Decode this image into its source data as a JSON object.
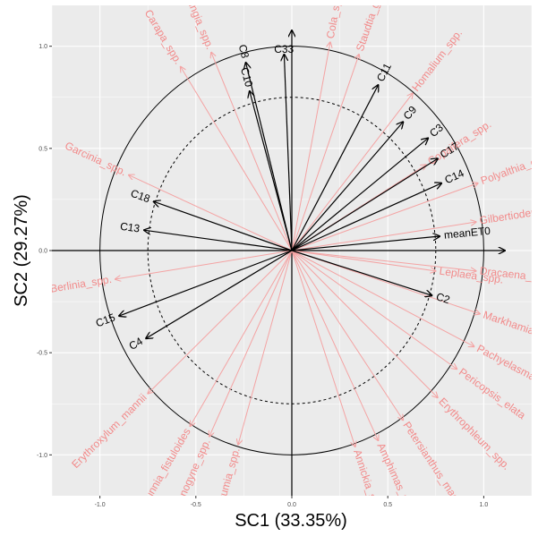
{
  "chart_data": {
    "type": "scatter",
    "subtype": "correlation-circle biplot",
    "title": "",
    "xlabel": "SC1 (33.35%)",
    "ylabel": "SC2 (29.27%)",
    "xlim": [
      -1.25,
      1.25
    ],
    "ylim": [
      -1.2,
      1.2
    ],
    "x_ticks": [
      -1.0,
      -0.5,
      0.0,
      0.5,
      1.0
    ],
    "x_tick_labels": [
      "-1.0",
      "-0.5",
      "0.0",
      "0.5",
      "1.0"
    ],
    "y_ticks": [
      -1.0,
      -0.5,
      0.0,
      0.5,
      1.0
    ],
    "y_tick_labels": [
      "-1.0",
      "-0.5",
      "0.0",
      "0.5",
      "1.0"
    ],
    "grid": true,
    "unit_circle_radius": 1.0,
    "inner_circle_radius": 0.75,
    "colors": {
      "panel_background": "#ebebeb",
      "grid_line": "#ffffff",
      "black_arrow": "#000000",
      "red_arrow": "#f4a3a3",
      "red_label": "#f28a8a"
    },
    "black_vectors": [
      {
        "label": "C8",
        "x": -0.24,
        "y": 0.92
      },
      {
        "label": "C10",
        "x": -0.22,
        "y": 0.78
      },
      {
        "label": "C33",
        "x": -0.04,
        "y": 0.96
      },
      {
        "label": "C11",
        "x": 0.45,
        "y": 0.81
      },
      {
        "label": "C9",
        "x": 0.58,
        "y": 0.63
      },
      {
        "label": "C3",
        "x": 0.71,
        "y": 0.55
      },
      {
        "label": "C17",
        "x": 0.76,
        "y": 0.45
      },
      {
        "label": "C14",
        "x": 0.78,
        "y": 0.33
      },
      {
        "label": "meanET0",
        "x": 0.77,
        "y": 0.07
      },
      {
        "label": "C2",
        "x": 0.73,
        "y": -0.22
      },
      {
        "label": "C18",
        "x": -0.72,
        "y": 0.24
      },
      {
        "label": "C13",
        "x": -0.77,
        "y": 0.1
      },
      {
        "label": "C15",
        "x": -0.9,
        "y": -0.32
      },
      {
        "label": "C4",
        "x": -0.76,
        "y": -0.43
      }
    ],
    "red_vectors": [
      {
        "label": "Irvingia_spp.",
        "x": -0.42,
        "y": 0.97
      },
      {
        "label": "Carapa_spp.",
        "x": -0.58,
        "y": 0.9
      },
      {
        "label": "Cola_spp.",
        "x": 0.2,
        "y": 1.02
      },
      {
        "label": "Staudtia_gabonensis",
        "x": 0.35,
        "y": 0.96
      },
      {
        "label": "Copaifera_spp.",
        "x": 0.7,
        "y": 0.42
      },
      {
        "label": "Polyalthia_oliveri",
        "x": 0.97,
        "y": 0.33
      },
      {
        "label": "Gilbertiodendron_spp.",
        "x": 0.96,
        "y": 0.14
      },
      {
        "label": "Leplaea_spp.",
        "x": 0.75,
        "y": -0.1
      },
      {
        "label": "Dracaena_spp.",
        "x": 0.96,
        "y": -0.1
      },
      {
        "label": "Markhamia_spp.",
        "x": 0.98,
        "y": -0.31
      },
      {
        "label": "Pachyelasma_spp.",
        "x": 0.95,
        "y": -0.47
      },
      {
        "label": "Pericopsis_elata",
        "x": 0.86,
        "y": -0.58
      },
      {
        "label": "Erythrophleum_spp.",
        "x": 0.76,
        "y": -0.72
      },
      {
        "label": "Petersianthus_macrocarpus",
        "x": 0.58,
        "y": -0.83
      },
      {
        "label": "Amphimas_spp.",
        "x": 0.45,
        "y": -0.93
      },
      {
        "label": "Annickia_spp.",
        "x": 0.33,
        "y": -0.96
      },
      {
        "label": "Bobgunnia_fistuloides",
        "x": -0.53,
        "y": -0.86
      },
      {
        "label": "Crotonogyne_spp.",
        "x": -0.43,
        "y": -0.91
      },
      {
        "label": "Funtumia_spp.",
        "x": -0.28,
        "y": -0.95
      },
      {
        "label": "Erythroxylum_mannii",
        "x": -0.75,
        "y": -0.7
      },
      {
        "label": "Berlinia_spp.",
        "x": -0.92,
        "y": -0.14
      },
      {
        "label": "Garcinia_spp.",
        "x": -0.85,
        "y": 0.37
      },
      {
        "label": "Homalium_spp.",
        "x": 0.63,
        "y": 0.77
      }
    ]
  }
}
